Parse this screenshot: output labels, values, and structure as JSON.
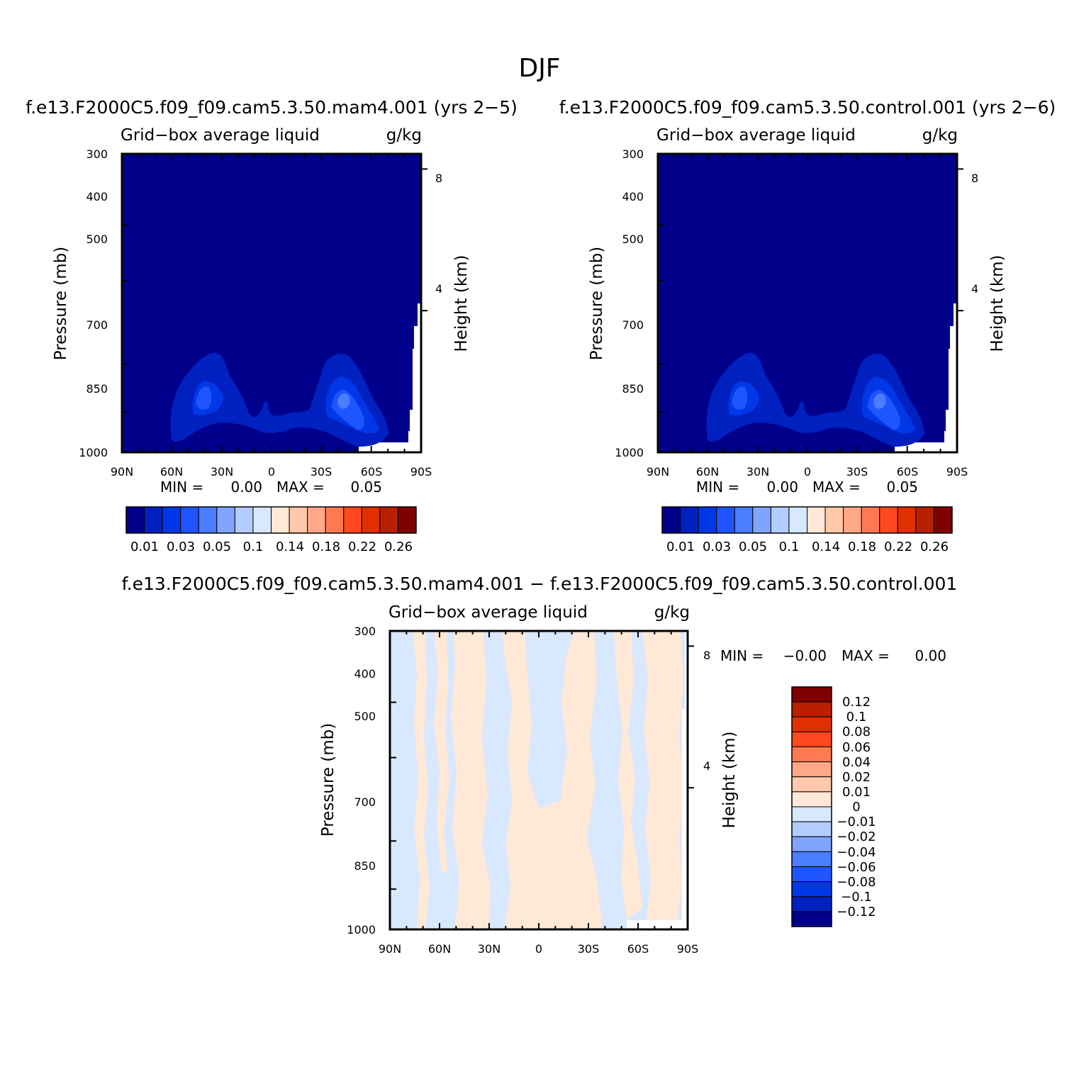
{
  "figure": {
    "title": "DJF"
  },
  "chart_data": [
    {
      "type": "heatmap",
      "panel_title": "f.e13.F2000C5.f09_f09.cam5.3.50.mam4.001 (yrs 2−5)",
      "left_label": "Grid−box average liquid",
      "right_label": "g/kg",
      "ylabel": "Pressure (mb)",
      "ylabel_right": "Height (km)",
      "x_ticks": [
        "90N",
        "60N",
        "30N",
        "0",
        "30S",
        "60S",
        "90S"
      ],
      "y_ticks": [
        "300",
        "400",
        "500",
        "700",
        "850",
        "1000"
      ],
      "y_right_ticks": [
        "8",
        "4"
      ],
      "xlim": [
        "90N",
        "90S"
      ],
      "ylim": [
        1000,
        300
      ],
      "yscale": "log",
      "min_label": "MIN =",
      "min_value": "0.00",
      "max_label": "MAX =",
      "max_value": "0.05",
      "features": [
        {
          "lat": 35,
          "p": 860,
          "value": 0.03
        },
        {
          "lat": -45,
          "p": 870,
          "value": 0.05
        }
      ],
      "colorbar": {
        "orientation": "horizontal",
        "labels": [
          "0.01",
          "0.03",
          "0.05",
          "0.1",
          "0.14",
          "0.18",
          "0.22",
          "0.26"
        ],
        "colors": [
          "#00008b",
          "#0020c0",
          "#0038e8",
          "#1f55ff",
          "#4a7dff",
          "#7fa5ff",
          "#b3ccff",
          "#d8e8ff",
          "#ffe8d6",
          "#ffc8aa",
          "#ffa888",
          "#ff7a50",
          "#ff4820",
          "#e03000",
          "#b82000",
          "#800000"
        ]
      }
    },
    {
      "type": "heatmap",
      "panel_title": "f.e13.F2000C5.f09_f09.cam5.3.50.control.001 (yrs 2−6)",
      "left_label": "Grid−box average liquid",
      "right_label": "g/kg",
      "ylabel": "Pressure (mb)",
      "ylabel_right": "Height (km)",
      "x_ticks": [
        "90N",
        "60N",
        "30N",
        "0",
        "30S",
        "60S",
        "90S"
      ],
      "y_ticks": [
        "300",
        "400",
        "500",
        "700",
        "850",
        "1000"
      ],
      "y_right_ticks": [
        "8",
        "4"
      ],
      "xlim": [
        "90N",
        "90S"
      ],
      "ylim": [
        1000,
        300
      ],
      "yscale": "log",
      "min_label": "MIN =",
      "min_value": "0.00",
      "max_label": "MAX =",
      "max_value": "0.05",
      "features": [
        {
          "lat": 35,
          "p": 860,
          "value": 0.03
        },
        {
          "lat": -45,
          "p": 870,
          "value": 0.05
        }
      ],
      "colorbar": {
        "orientation": "horizontal",
        "labels": [
          "0.01",
          "0.03",
          "0.05",
          "0.1",
          "0.14",
          "0.18",
          "0.22",
          "0.26"
        ],
        "colors": [
          "#00008b",
          "#0020c0",
          "#0038e8",
          "#1f55ff",
          "#4a7dff",
          "#7fa5ff",
          "#b3ccff",
          "#d8e8ff",
          "#ffe8d6",
          "#ffc8aa",
          "#ffa888",
          "#ff7a50",
          "#ff4820",
          "#e03000",
          "#b82000",
          "#800000"
        ]
      }
    },
    {
      "type": "heatmap",
      "panel_title": "f.e13.F2000C5.f09_f09.cam5.3.50.mam4.001 − f.e13.F2000C5.f09_f09.cam5.3.50.control.001",
      "left_label": "Grid−box average liquid",
      "right_label": "g/kg",
      "ylabel": "Pressure (mb)",
      "ylabel_right": "Height (km)",
      "x_ticks": [
        "90N",
        "60N",
        "30N",
        "0",
        "30S",
        "60S",
        "90S"
      ],
      "y_ticks": [
        "300",
        "400",
        "500",
        "700",
        "850",
        "1000"
      ],
      "y_right_ticks": [
        "8",
        "4"
      ],
      "xlim": [
        "90N",
        "90S"
      ],
      "ylim": [
        1000,
        300
      ],
      "yscale": "log",
      "min_label": "MIN =",
      "min_value": "−0.00",
      "max_label": "MAX =",
      "max_value": "0.00",
      "colorbar": {
        "orientation": "vertical",
        "labels": [
          "0.12",
          "0.1",
          "0.08",
          "0.06",
          "0.04",
          "0.02",
          "0.01",
          "0",
          "−0.01",
          "−0.02",
          "−0.04",
          "−0.06",
          "−0.08",
          "−0.1",
          "−0.12"
        ],
        "colors": [
          "#800000",
          "#b82000",
          "#e03000",
          "#ff4820",
          "#ff7a50",
          "#ffa888",
          "#ffc8aa",
          "#ffe8d6",
          "#d8e8ff",
          "#b3ccff",
          "#7fa5ff",
          "#4a7dff",
          "#1f55ff",
          "#0038e8",
          "#0020c0",
          "#00008b"
        ]
      }
    }
  ]
}
